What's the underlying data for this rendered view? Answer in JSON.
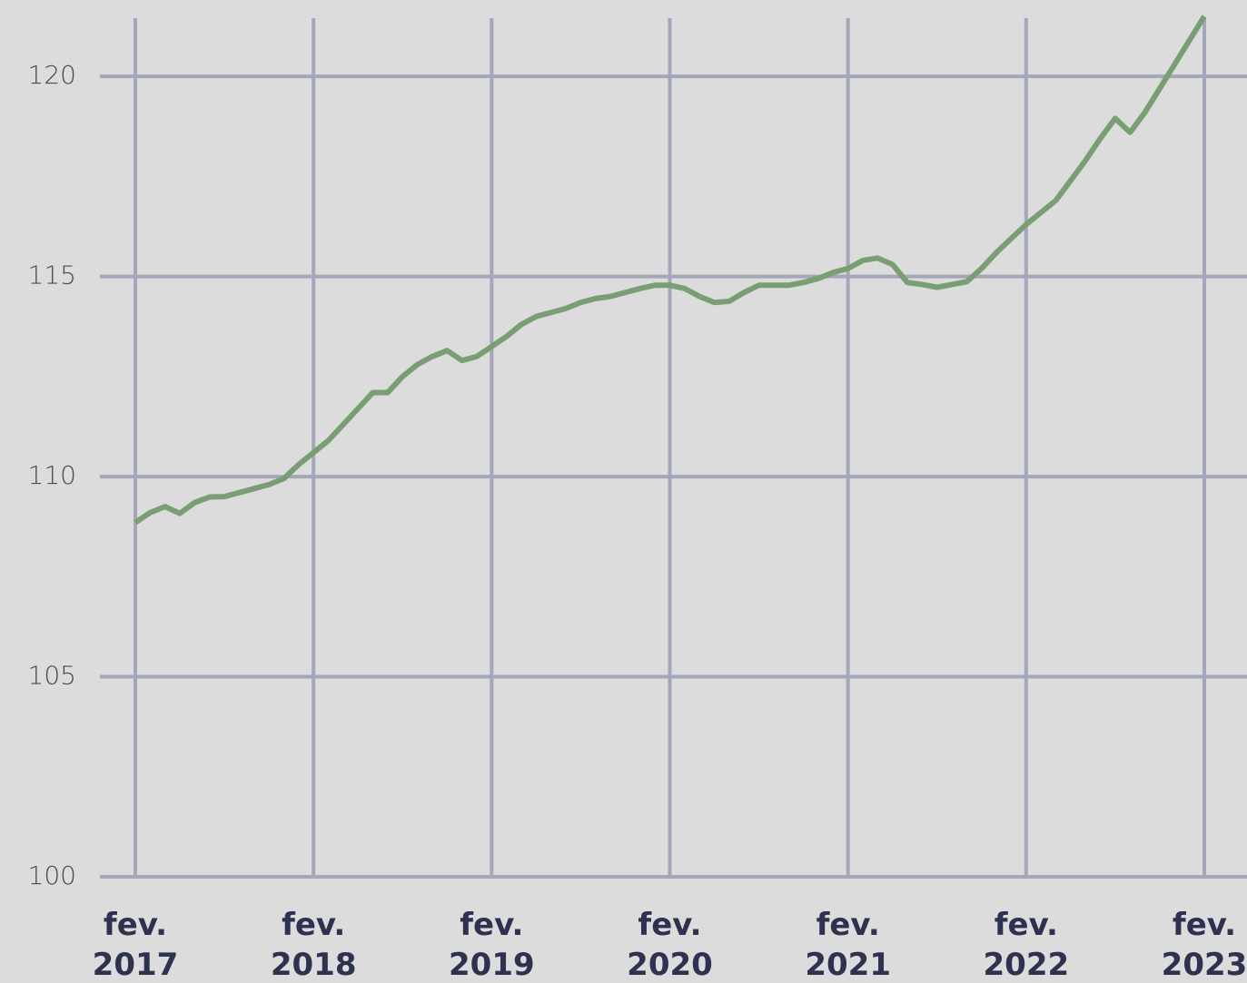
{
  "chart_data": {
    "type": "line",
    "x": [
      "2017-02",
      "2017-03",
      "2017-04",
      "2017-05",
      "2017-06",
      "2017-07",
      "2017-08",
      "2017-09",
      "2017-10",
      "2017-11",
      "2017-12",
      "2018-01",
      "2018-02",
      "2018-03",
      "2018-04",
      "2018-05",
      "2018-06",
      "2018-07",
      "2018-08",
      "2018-09",
      "2018-10",
      "2018-11",
      "2018-12",
      "2019-01",
      "2019-02",
      "2019-03",
      "2019-04",
      "2019-05",
      "2019-06",
      "2019-07",
      "2019-08",
      "2019-09",
      "2019-10",
      "2019-11",
      "2019-12",
      "2020-01",
      "2020-02",
      "2020-03",
      "2020-04",
      "2020-05",
      "2020-06",
      "2020-07",
      "2020-08",
      "2020-09",
      "2020-10",
      "2020-11",
      "2020-12",
      "2021-01",
      "2021-02",
      "2021-03",
      "2021-04",
      "2021-05",
      "2021-06",
      "2021-07",
      "2021-08",
      "2021-09",
      "2021-10",
      "2021-11",
      "2021-12",
      "2022-01",
      "2022-02",
      "2022-03",
      "2022-04",
      "2022-05",
      "2022-06",
      "2022-07",
      "2022-08",
      "2022-09",
      "2022-10",
      "2022-11",
      "2022-12",
      "2023-01",
      "2023-02"
    ],
    "series": [
      {
        "color": "#7a9e74",
        "values": [
          108.85,
          109.1,
          109.25,
          109.08,
          109.35,
          109.49,
          109.5,
          109.6,
          109.7,
          109.8,
          109.95,
          110.3,
          110.6,
          110.9,
          111.3,
          111.7,
          112.1,
          112.1,
          112.5,
          112.8,
          113.0,
          113.15,
          112.9,
          113.0,
          113.25,
          113.5,
          113.8,
          114.0,
          114.1,
          114.2,
          114.35,
          114.45,
          114.5,
          114.6,
          114.7,
          114.78,
          114.78,
          114.7,
          114.5,
          114.35,
          114.38,
          114.6,
          114.78,
          114.78,
          114.78,
          114.85,
          114.95,
          115.1,
          115.2,
          115.4,
          115.46,
          115.3,
          114.85,
          114.8,
          114.73,
          114.8,
          114.87,
          115.2,
          115.6,
          115.95,
          116.3,
          116.6,
          116.9,
          117.4,
          117.9,
          118.45,
          118.95,
          118.6,
          119.1,
          119.7,
          120.3,
          120.9,
          121.5
        ]
      }
    ],
    "xlim": [
      "2017-02",
      "2023-02"
    ],
    "xticks": [
      {
        "value": "2017-02",
        "label": "fev. 2017"
      },
      {
        "value": "2018-02",
        "label": "fev. 2018"
      },
      {
        "value": "2019-02",
        "label": "fev. 2019"
      },
      {
        "value": "2020-02",
        "label": "fev. 2020"
      },
      {
        "value": "2021-02",
        "label": "fev. 2021"
      },
      {
        "value": "2022-02",
        "label": "fev. 2022"
      },
      {
        "value": "2023-02",
        "label": "fev. 2023"
      }
    ],
    "ylim": [
      100,
      121.5
    ],
    "yticks": [
      100,
      105,
      110,
      115,
      120
    ],
    "grid": true
  }
}
